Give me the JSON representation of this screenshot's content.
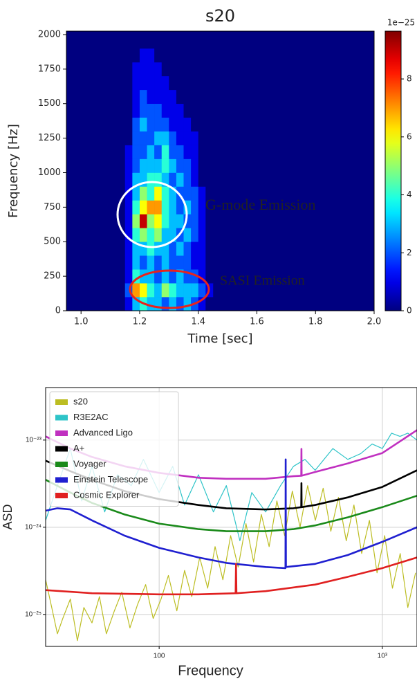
{
  "chart_data": [
    {
      "type": "heatmap",
      "title": "s20",
      "xlabel": "Time [sec]",
      "ylabel": "Frequency [Hz]",
      "x_edges": [
        1.15,
        1.175,
        1.2,
        1.225,
        1.25,
        1.275,
        1.3,
        1.325,
        1.35,
        1.375,
        1.4,
        1.425,
        1.45
      ],
      "y_edges": [
        0,
        100,
        200,
        300,
        400,
        500,
        600,
        700,
        800,
        900,
        1000,
        1100,
        1200,
        1300,
        1400,
        1500,
        1600,
        1700,
        1800,
        1900,
        2000
      ],
      "z": [
        [
          1,
          3,
          4,
          3,
          3,
          2,
          3,
          2,
          3,
          2,
          1,
          0
        ],
        [
          2,
          7,
          6,
          4,
          3,
          5,
          4,
          3,
          3,
          3,
          2,
          1
        ],
        [
          1,
          4,
          3,
          3,
          2,
          3,
          2,
          3,
          2,
          2,
          1,
          0
        ],
        [
          1,
          3,
          2,
          3,
          2,
          3,
          2,
          2,
          2,
          1,
          1,
          0
        ],
        [
          1,
          3,
          3,
          4,
          3,
          3,
          2,
          3,
          2,
          1,
          1,
          0
        ],
        [
          1,
          4,
          5,
          4,
          5,
          3,
          3,
          2,
          3,
          2,
          1,
          0
        ],
        [
          1,
          5,
          9,
          5,
          6,
          4,
          3,
          3,
          2,
          2,
          1,
          0
        ],
        [
          1,
          4,
          6,
          7,
          7,
          4,
          3,
          2,
          3,
          2,
          1,
          0
        ],
        [
          1,
          3,
          5,
          4,
          6,
          4,
          3,
          2,
          2,
          2,
          1,
          0
        ],
        [
          1,
          3,
          3,
          4,
          4,
          3,
          2,
          3,
          2,
          1,
          0,
          0
        ],
        [
          1,
          2,
          3,
          3,
          3,
          4,
          3,
          2,
          2,
          1,
          0,
          0
        ],
        [
          1,
          2,
          2,
          3,
          2,
          4,
          2,
          2,
          1,
          1,
          0,
          0
        ],
        [
          0,
          2,
          2,
          2,
          3,
          3,
          2,
          1,
          1,
          1,
          0,
          0
        ],
        [
          0,
          2,
          3,
          2,
          2,
          2,
          1,
          1,
          1,
          0,
          0,
          0
        ],
        [
          0,
          1,
          2,
          2,
          2,
          1,
          1,
          1,
          0,
          0,
          0,
          0
        ],
        [
          0,
          1,
          2,
          1,
          1,
          1,
          1,
          0,
          0,
          0,
          0,
          0
        ],
        [
          0,
          1,
          1,
          1,
          1,
          1,
          0,
          0,
          0,
          0,
          0,
          0
        ],
        [
          0,
          1,
          1,
          1,
          1,
          0,
          0,
          0,
          0,
          0,
          0,
          0
        ],
        [
          0,
          0,
          1,
          1,
          0,
          0,
          0,
          0,
          0,
          0,
          0,
          0
        ],
        [
          0,
          0,
          0,
          0,
          0,
          0,
          0,
          0,
          0,
          0,
          0,
          0
        ]
      ],
      "background_value": 0,
      "xlim": [
        0.95,
        2.0
      ],
      "xticks": [
        {
          "value": 1,
          "label": "1.0"
        },
        1.2,
        1.4,
        1.6,
        1.8,
        {
          "value": 2,
          "label": "2.0"
        }
      ],
      "ylim": [
        0,
        2025
      ],
      "yticks": [
        0,
        250,
        500,
        750,
        1000,
        1250,
        1500,
        1750,
        2000
      ],
      "colormap": "jet",
      "clim": [
        0,
        9.65
      ],
      "colorbar_ticks": [
        0,
        2,
        4,
        6,
        8
      ],
      "colorbar_offset_label": "1e−25",
      "annotations": [
        {
          "text": "G-mode Emission",
          "color": "#ffffff"
        },
        {
          "text": "SASI Emission",
          "color": "#e8231c"
        }
      ]
    },
    {
      "type": "line",
      "xlabel": "Frequency",
      "ylabel": "ASD",
      "xscale": "log",
      "yscale": "log",
      "grid": true,
      "legend": "upper left",
      "xlim": [
        31,
        1430
      ],
      "xticks": [
        100,
        {
          "value": 1000,
          "label": "10³"
        }
      ],
      "ylim": [
        4.3e-26,
        4e-23
      ],
      "yticks": [
        {
          "value": 1e-25,
          "label": "10⁻²⁵"
        },
        {
          "value": 1e-24,
          "label": "10⁻²⁴"
        },
        {
          "value": 1e-23,
          "label": "10⁻²³"
        }
      ],
      "series": [
        {
          "name": "s20",
          "color": "#bcbd22",
          "width": 1.2,
          "x": [
            31,
            33,
            35,
            37,
            40,
            43,
            46,
            50,
            54,
            58,
            63,
            68,
            74,
            80,
            87,
            94,
            102,
            110,
            120,
            130,
            140,
            152,
            165,
            178,
            193,
            209,
            226,
            245,
            265,
            287,
            311,
            337,
            365,
            395,
            428,
            463,
            501,
            543,
            588,
            636,
            689,
            746,
            808,
            875,
            947,
            1025,
            1110,
            1202,
            1301,
            1409
          ],
          "values": [
            2.5e-25,
            1.2e-25,
            6e-26,
            9e-26,
            1.5e-25,
            5e-26,
            1.2e-25,
            8e-26,
            1.6e-25,
            6e-26,
            1.1e-25,
            1.8e-25,
            7e-26,
            1.3e-25,
            2.2e-25,
            9e-26,
            1.5e-25,
            2.8e-25,
            1.1e-25,
            3.2e-25,
            1.6e-25,
            4.5e-25,
            2e-25,
            6e-25,
            2.5e-25,
            8e-25,
            3.5e-25,
            1.1e-24,
            4e-25,
            1.4e-24,
            6e-25,
            2e-24,
            8e-25,
            2.6e-24,
            1e-24,
            3e-24,
            1.2e-24,
            2.8e-24,
            9e-25,
            2.2e-24,
            7e-25,
            1.8e-24,
            5e-25,
            1.2e-24,
            3e-25,
            8e-25,
            2e-25,
            5e-25,
            1.2e-25,
            3e-25
          ]
        },
        {
          "name": "R3E2AC",
          "color": "#2ec4c8",
          "width": 1.2,
          "x": [
            31,
            35,
            40,
            45,
            50,
            57,
            65,
            75,
            85,
            100,
            115,
            130,
            150,
            175,
            200,
            230,
            260,
            300,
            350,
            400,
            450,
            500,
            600,
            700,
            800,
            900,
            1000,
            1100,
            1200,
            1300,
            1430
          ],
          "values": [
            1.2e-24,
            3e-24,
            8e-24,
            2e-24,
            5e-24,
            1.5e-24,
            4e-24,
            3e-24,
            6e-24,
            2.5e-24,
            5e-24,
            1.8e-24,
            4e-24,
            1.5e-24,
            3e-24,
            7e-25,
            2.5e-24,
            1.5e-24,
            3e-24,
            5e-24,
            6e-24,
            4.5e-24,
            8e-24,
            6e-24,
            7e-24,
            9e-24,
            8e-24,
            1.2e-23,
            1.1e-23,
            1.2e-23,
            1e-23
          ]
        },
        {
          "name": "Advanced Ligo",
          "color": "#c030c0",
          "width": 2.6,
          "x": [
            31,
            40,
            50,
            70,
            100,
            150,
            200,
            300,
            400,
            433,
            434,
            435,
            500,
            700,
            1000,
            1430
          ],
          "values": [
            1.1e-23,
            8e-24,
            6.4e-24,
            5e-24,
            4.2e-24,
            3.7e-24,
            3.6e-24,
            3.6e-24,
            3.85e-24,
            3.9e-24,
            7.9e-24,
            3.9e-24,
            4.3e-24,
            5.4e-24,
            7.1e-24,
            1.3e-23
          ]
        },
        {
          "name": "A+",
          "color": "#000000",
          "width": 2.6,
          "x": [
            31,
            40,
            50,
            70,
            100,
            150,
            200,
            300,
            400,
            433,
            434,
            435,
            500,
            700,
            1000,
            1430
          ],
          "values": [
            5.8e-24,
            4.4e-24,
            3.5e-24,
            2.6e-24,
            2.1e-24,
            1.8e-24,
            1.65e-24,
            1.6e-24,
            1.65e-24,
            1.7e-24,
            3.2e-24,
            1.7e-24,
            1.8e-24,
            2.2e-24,
            2.9e-24,
            4.5e-24
          ]
        },
        {
          "name": "Voyager",
          "color": "#1a8a1a",
          "width": 2.6,
          "x": [
            31,
            40,
            50,
            70,
            100,
            150,
            200,
            300,
            400,
            500,
            700,
            1000,
            1430
          ],
          "values": [
            3.5e-24,
            2.5e-24,
            1.9e-24,
            1.4e-24,
            1.1e-24,
            9.5e-25,
            9e-25,
            9e-25,
            9.5e-25,
            1.05e-24,
            1.3e-24,
            1.7e-24,
            2.3e-24
          ]
        },
        {
          "name": "Einstein Telescope",
          "color": "#1f1fd0",
          "width": 2.6,
          "x": [
            31,
            35,
            40,
            50,
            70,
            100,
            150,
            200,
            300,
            368,
            369,
            370,
            500,
            700,
            1000,
            1430
          ],
          "values": [
            1.55e-24,
            1.65e-24,
            1.6e-24,
            1.2e-24,
            8e-25,
            5.8e-25,
            4.5e-25,
            3.9e-25,
            3.5e-25,
            3.4e-25,
            6e-24,
            3.5e-25,
            3.8e-25,
            4.8e-25,
            6.8e-25,
            1e-24
          ]
        },
        {
          "name": "Cosmic Explorer",
          "color": "#e02020",
          "width": 2.6,
          "x": [
            31,
            50,
            100,
            150,
            220,
            221,
            222,
            300,
            500,
            700,
            1000,
            1430
          ],
          "values": [
            1.9e-25,
            1.75e-25,
            1.7e-25,
            1.7e-25,
            1.75e-25,
            3.8e-25,
            1.75e-25,
            1.85e-25,
            2.2e-25,
            2.7e-25,
            3.4e-25,
            4.5e-25
          ]
        }
      ]
    }
  ]
}
